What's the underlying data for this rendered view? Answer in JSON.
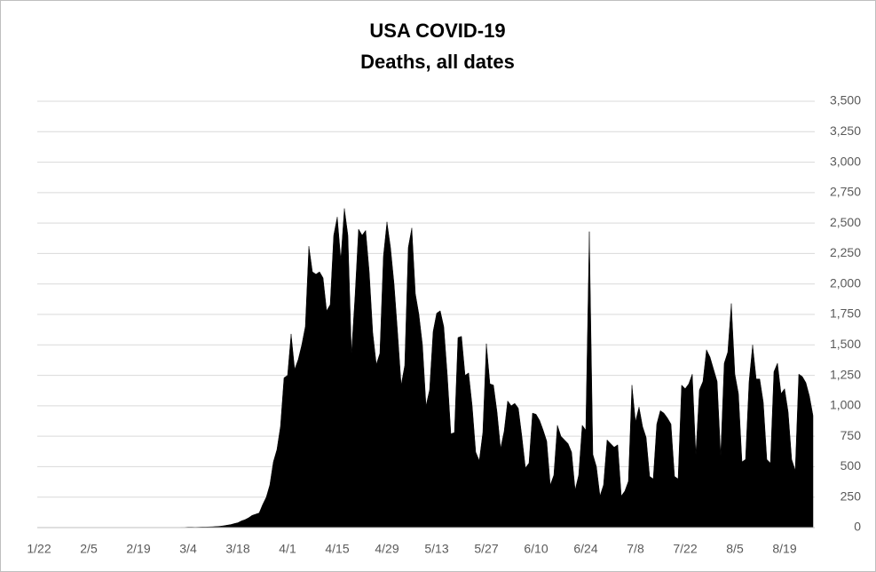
{
  "chart_data": {
    "type": "area",
    "title": "USA COVID-19",
    "subtitle": "Deaths, all dates",
    "categories": [
      "1/22",
      null,
      null,
      null,
      null,
      null,
      null,
      null,
      null,
      null,
      null,
      null,
      null,
      null,
      "2/5",
      null,
      null,
      null,
      null,
      null,
      null,
      null,
      null,
      null,
      null,
      null,
      null,
      null,
      "2/19",
      null,
      null,
      null,
      null,
      null,
      null,
      null,
      null,
      null,
      null,
      null,
      null,
      null,
      "3/4",
      null,
      null,
      null,
      null,
      null,
      null,
      null,
      null,
      null,
      null,
      null,
      null,
      null,
      "3/18",
      null,
      null,
      null,
      null,
      null,
      null,
      null,
      null,
      null,
      null,
      null,
      null,
      null,
      "4/1",
      null,
      null,
      null,
      null,
      null,
      null,
      null,
      null,
      null,
      null,
      null,
      null,
      null,
      "4/15",
      null,
      null,
      null,
      null,
      null,
      null,
      null,
      null,
      null,
      null,
      null,
      null,
      null,
      "4/29",
      null,
      null,
      null,
      null,
      null,
      null,
      null,
      null,
      null,
      null,
      null,
      null,
      null,
      "5/13",
      null,
      null,
      null,
      null,
      null,
      null,
      null,
      null,
      null,
      null,
      null,
      null,
      null,
      "5/27",
      null,
      null,
      null,
      null,
      null,
      null,
      null,
      null,
      null,
      null,
      null,
      null,
      null,
      "6/10",
      null,
      null,
      null,
      null,
      null,
      null,
      null,
      null,
      null,
      null,
      null,
      null,
      null,
      "6/24",
      null,
      null,
      null,
      null,
      null,
      null,
      null,
      null,
      null,
      null,
      null,
      null,
      null,
      "7/8",
      null,
      null,
      null,
      null,
      null,
      null,
      null,
      null,
      null,
      null,
      null,
      null,
      null,
      "7/22",
      null,
      null,
      null,
      null,
      null,
      null,
      null,
      null,
      null,
      null,
      null,
      null,
      null,
      "8/5",
      null,
      null,
      null,
      null,
      null,
      null,
      null,
      null,
      null,
      null,
      null,
      null,
      null,
      "8/19",
      null,
      null,
      null,
      null,
      null,
      null,
      null,
      null
    ],
    "values": [
      0,
      0,
      0,
      0,
      0,
      0,
      0,
      0,
      0,
      0,
      0,
      0,
      0,
      0,
      0,
      0,
      0,
      0,
      0,
      0,
      0,
      0,
      0,
      0,
      0,
      0,
      0,
      0,
      0,
      0,
      0,
      0,
      0,
      0,
      0,
      0,
      0,
      0,
      0,
      1,
      2,
      2,
      4,
      4,
      3,
      4,
      5,
      5,
      6,
      7,
      9,
      11,
      15,
      20,
      25,
      33,
      40,
      55,
      65,
      80,
      100,
      110,
      120,
      190,
      250,
      350,
      540,
      640,
      830,
      1230,
      1250,
      1590,
      1300,
      1380,
      1500,
      1650,
      2310,
      2100,
      2080,
      2100,
      2050,
      1780,
      1830,
      2400,
      2550,
      2200,
      2620,
      2400,
      1430,
      1900,
      2450,
      2400,
      2440,
      2100,
      1600,
      1340,
      1430,
      2230,
      2510,
      2300,
      2000,
      1600,
      1170,
      1330,
      2300,
      2460,
      1920,
      1750,
      1500,
      1000,
      1130,
      1610,
      1760,
      1780,
      1650,
      1250,
      770,
      780,
      1560,
      1570,
      1250,
      1270,
      1000,
      620,
      550,
      780,
      1510,
      1180,
      1170,
      950,
      650,
      790,
      1040,
      1000,
      1020,
      980,
      750,
      490,
      530,
      940,
      930,
      880,
      800,
      710,
      350,
      430,
      840,
      750,
      720,
      690,
      620,
      310,
      430,
      840,
      800,
      2430,
      600,
      500,
      260,
      350,
      720,
      690,
      660,
      680,
      260,
      300,
      380,
      1170,
      870,
      990,
      830,
      740,
      420,
      400,
      850,
      960,
      940,
      900,
      850,
      420,
      400,
      1170,
      1140,
      1180,
      1260,
      600,
      1130,
      1200,
      1460,
      1400,
      1300,
      1200,
      590,
      1350,
      1440,
      1840,
      1260,
      1100,
      540,
      560,
      1200,
      1500,
      1220,
      1220,
      1030,
      560,
      530,
      1280,
      1350,
      1100,
      1140,
      950,
      560,
      470,
      1260,
      1240,
      1190,
      1080,
      920
    ],
    "color": "#000000",
    "ylim": [
      0,
      3500
    ],
    "yticks": [
      0,
      250,
      500,
      750,
      {
        "value": 1000,
        "label": "1,000"
      },
      {
        "value": 1250,
        "label": "1,250"
      },
      {
        "value": 1500,
        "label": "1,500"
      },
      {
        "value": 1750,
        "label": "1,750"
      },
      {
        "value": 2000,
        "label": "2,000"
      },
      {
        "value": 2250,
        "label": "2,250"
      },
      {
        "value": 2500,
        "label": "2,500"
      },
      {
        "value": 2750,
        "label": "2,750"
      },
      {
        "value": 3000,
        "label": "3,000"
      },
      {
        "value": 3250,
        "label": "3,250"
      },
      {
        "value": 3500,
        "label": "3,500"
      }
    ],
    "grid": true
  }
}
